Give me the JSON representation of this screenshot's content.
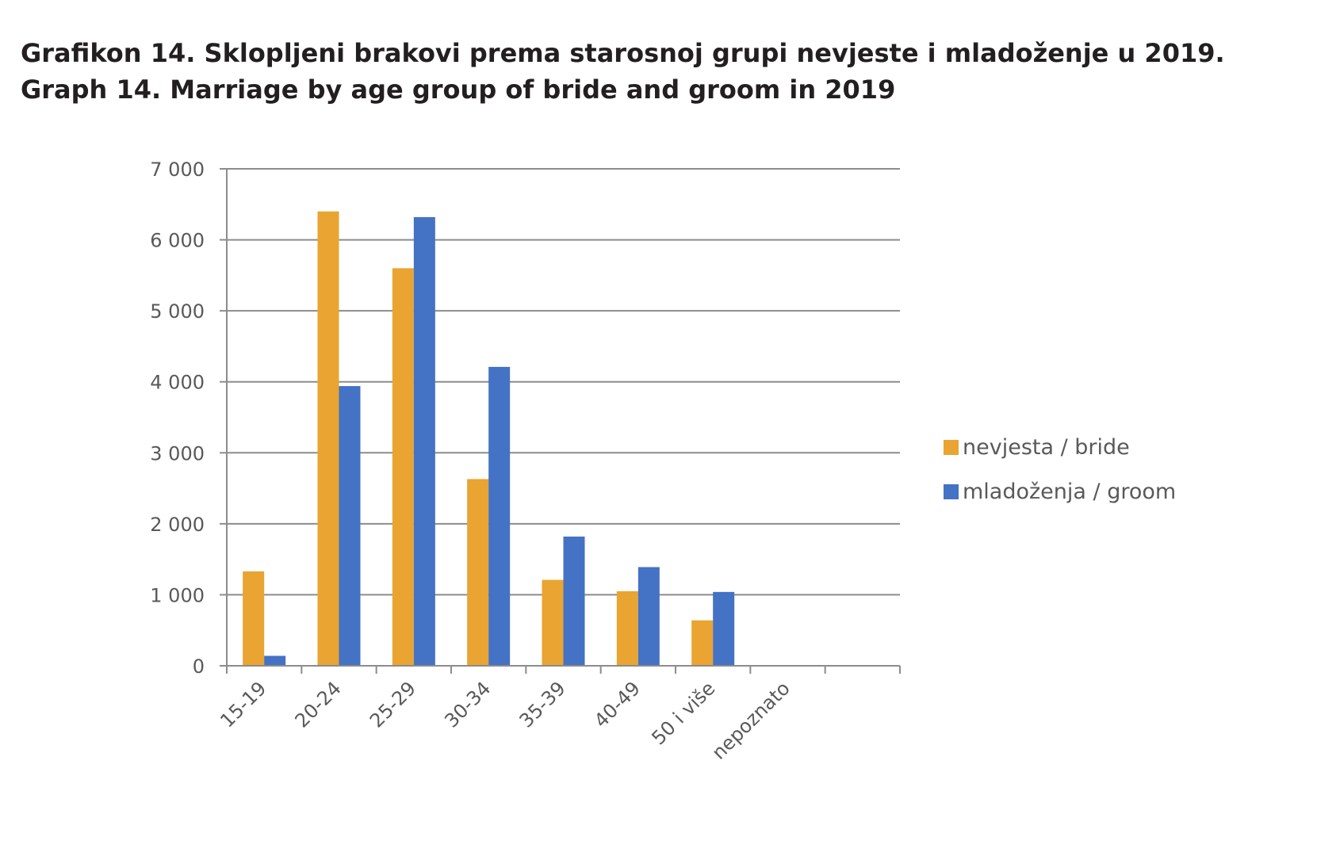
{
  "titles": {
    "line1": "Grafikon 14. Sklopljeni brakovi prema starosnoj grupi nevjeste i mladoženje u 2019.",
    "line2": "Graph 14. Marriage by age group of bride and groom in 2019"
  },
  "chart_data": {
    "type": "bar",
    "categories": [
      "15-19",
      "20-24",
      "25-29",
      "30-34",
      "35-39",
      "40-49",
      "50 i više",
      "nepoznato",
      ""
    ],
    "series": [
      {
        "name": "nevjesta / bride",
        "color": "#e9a432",
        "values": [
          1330,
          6400,
          5600,
          2630,
          1210,
          1050,
          640,
          10,
          0
        ]
      },
      {
        "name": "mladoženja / groom",
        "color": "#4472c4",
        "values": [
          140,
          3940,
          6320,
          4210,
          1820,
          1390,
          1040,
          0,
          0
        ]
      }
    ],
    "y_ticks": [
      "0",
      "1 000",
      "2 000",
      "3 000",
      "4 000",
      "5 000",
      "6 000",
      "7 000"
    ],
    "ylim": [
      0,
      7000
    ],
    "grid": true,
    "legend_position": "right",
    "xlabel": "",
    "ylabel": ""
  }
}
